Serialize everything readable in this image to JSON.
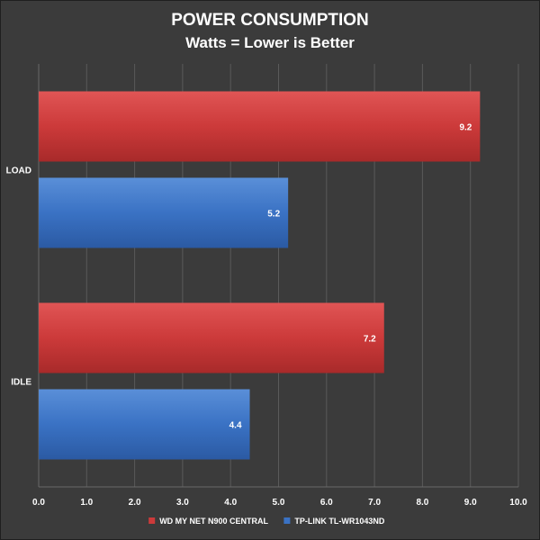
{
  "chart_data": {
    "type": "bar",
    "orientation": "horizontal",
    "title": "POWER CONSUMPTION",
    "subtitle": "Watts = Lower is Better",
    "categories": [
      "LOAD",
      "IDLE"
    ],
    "series": [
      {
        "name": "WD MY NET N900 CENTRAL",
        "color": "#cc3a3a",
        "values": [
          9.2,
          7.2
        ],
        "value_labels": [
          "9.2",
          "7.2"
        ]
      },
      {
        "name": "TP-LINK TL-WR1043ND",
        "color": "#3a72c4",
        "values": [
          5.2,
          4.4
        ],
        "value_labels": [
          "5.2",
          "4.4"
        ]
      }
    ],
    "xlim": [
      0,
      10
    ],
    "xticks": [
      "0.0",
      "1.0",
      "2.0",
      "3.0",
      "4.0",
      "5.0",
      "6.0",
      "7.0",
      "8.0",
      "9.0",
      "10.0"
    ],
    "grid": true,
    "legend_position": "bottom"
  }
}
